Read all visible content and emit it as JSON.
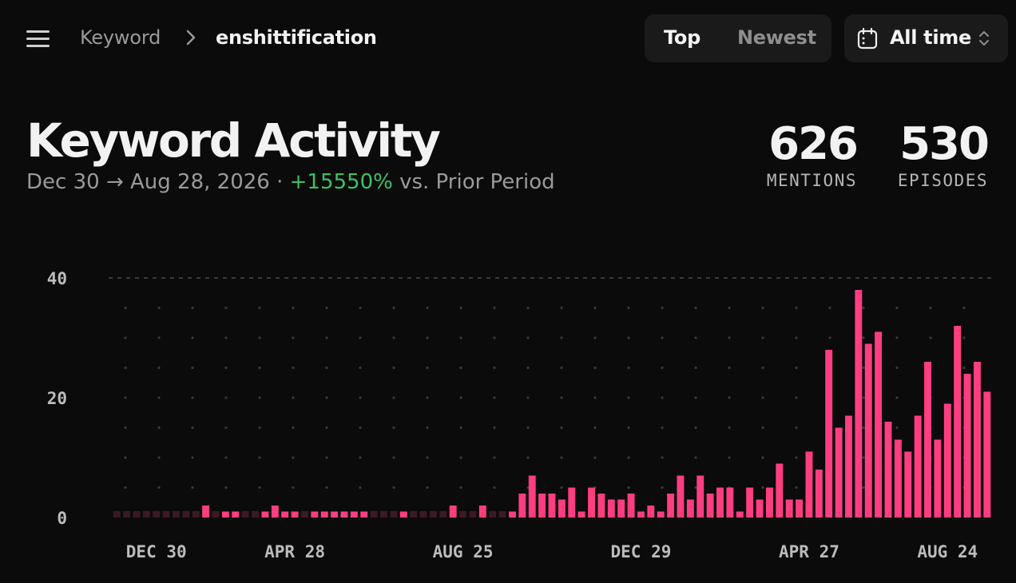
{
  "header": {
    "breadcrumb_root": "Keyword",
    "breadcrumb_current": "enshittification",
    "sort_options": [
      "Top",
      "Newest"
    ],
    "sort_active": "Top",
    "time_range": "All time"
  },
  "summary": {
    "date_from": "Dec 30",
    "date_to": "Aug 28, 2026",
    "change": "+15550%",
    "change_suffix": "vs. Prior Period",
    "mentions_value": "626",
    "mentions_label": "MENTIONS",
    "episodes_value": "530",
    "episodes_label": "EPISODES"
  },
  "colors": {
    "bar": "#ff3d81",
    "bar_empty": "#3a1a24",
    "positive": "#39c463",
    "background": "#0b0b0b"
  },
  "chart_data": {
    "type": "bar",
    "title": "Keyword Activity",
    "ylim": [
      0,
      40
    ],
    "yticks": [
      0,
      20,
      40
    ],
    "x_tick_labels": [
      "DEC 30",
      "APR 28",
      "AUG 25",
      "DEC 29",
      "APR 27",
      "AUG 24"
    ],
    "x_tick_indices": [
      4,
      18,
      35,
      53,
      70,
      84
    ],
    "values": [
      0,
      0,
      0,
      0,
      0,
      0,
      0,
      0,
      0,
      2,
      0,
      1,
      1,
      0,
      0,
      1,
      2,
      1,
      1,
      0,
      1,
      1,
      1,
      1,
      1,
      1,
      0,
      0,
      0,
      1,
      0,
      0,
      0,
      0,
      2,
      0,
      0,
      2,
      0,
      0,
      1,
      4,
      7,
      4,
      4,
      3,
      5,
      1,
      5,
      4,
      3,
      3,
      4,
      1,
      2,
      1,
      4,
      7,
      3,
      7,
      4,
      5,
      5,
      1,
      5,
      3,
      5,
      9,
      3,
      3,
      11,
      8,
      28,
      15,
      17,
      38,
      29,
      31,
      16,
      13,
      11,
      17,
      26,
      13,
      19,
      32,
      24,
      26,
      21
    ],
    "grid": true,
    "legend": "none"
  }
}
